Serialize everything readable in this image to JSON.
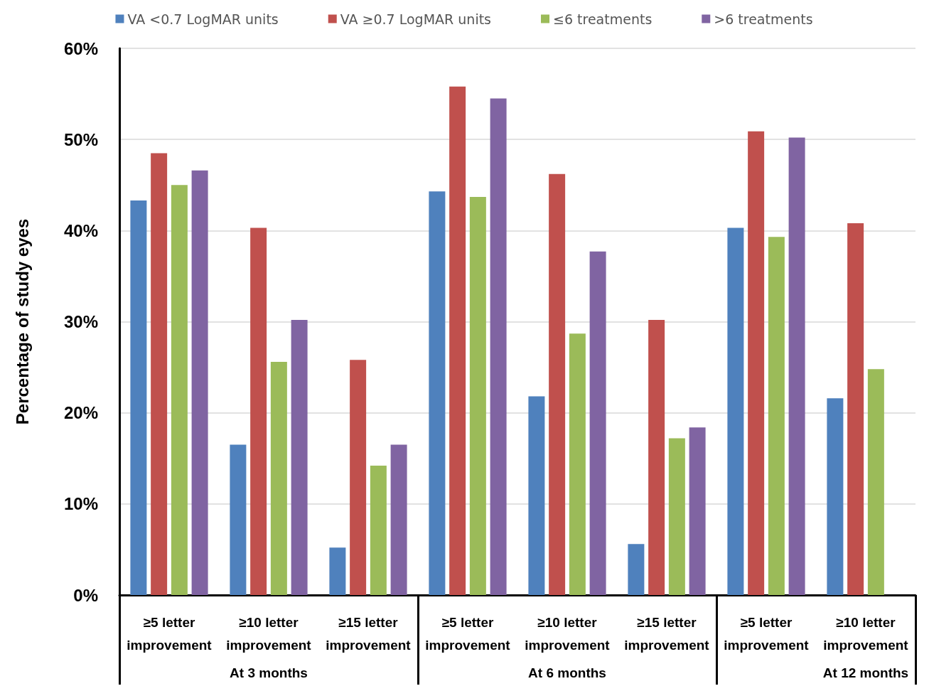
{
  "chart_data": {
    "type": "bar",
    "ylabel": "Percentage of study eyes",
    "categories": [
      "≥5 letter improvement",
      "≥10 letter improvement",
      "≥15 letter improvement",
      "≥5 letter improvement",
      "≥10 letter improvement",
      "≥15 letter improvement",
      "≥5 letter improvement",
      "≥10 letter improvement"
    ],
    "annotations": [
      "At 3 months",
      "At 6 months",
      "At 12 months"
    ],
    "series": [
      {
        "name": "VA <0.7 LogMAR units",
        "color": "#4f81bd",
        "values": [
          43.3,
          16.5,
          5.2,
          44.3,
          21.8,
          5.6,
          40.3,
          21.6
        ]
      },
      {
        "name": "VA ≥0.7 LogMAR units",
        "color": "#c0504d",
        "values": [
          48.5,
          40.3,
          25.8,
          55.8,
          46.2,
          30.2,
          50.9,
          40.8
        ]
      },
      {
        "name": "≤6 treatments",
        "color": "#9bbb59",
        "values": [
          45.0,
          25.6,
          14.2,
          43.7,
          28.7,
          17.2,
          39.3,
          24.8
        ]
      },
      {
        "name": ">6 treatments",
        "color": "#8064a2",
        "values": [
          46.6,
          30.2,
          16.5,
          54.5,
          37.7,
          18.4,
          50.2,
          null
        ]
      }
    ],
    "ylim": [
      0,
      60
    ],
    "yticks": [
      {
        "value": 0,
        "label": "0%"
      },
      {
        "value": 10,
        "label": "10%"
      },
      {
        "value": 20,
        "label": "20%"
      },
      {
        "value": 30,
        "label": "30%"
      },
      {
        "value": 40,
        "label": "40%"
      },
      {
        "value": 50,
        "label": "50%"
      },
      {
        "value": 60,
        "label": "60%"
      }
    ],
    "grid": "y",
    "legend": "top"
  }
}
